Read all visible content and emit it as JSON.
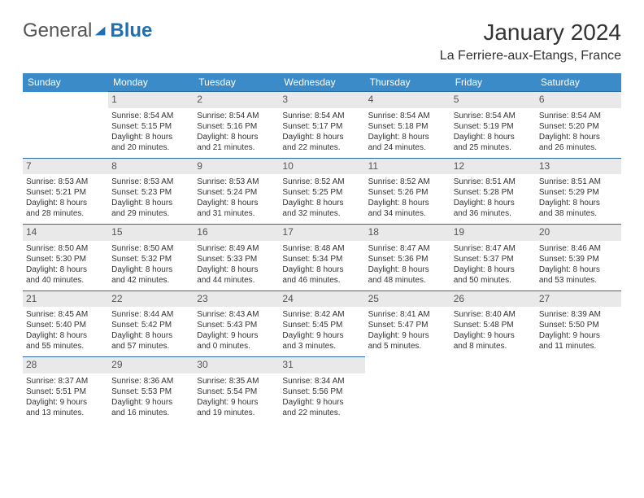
{
  "brand": {
    "part1": "General",
    "part2": "Blue"
  },
  "title": "January 2024",
  "location": "La Ferriere-aux-Etangs, France",
  "colors": {
    "header_bg": "#3b8bc8",
    "header_text": "#ffffff",
    "daynum_bg": "#e9e9e9",
    "rule": "#2a6aa8",
    "brand_blue": "#1f6fb2"
  },
  "dayHeaders": [
    "Sunday",
    "Monday",
    "Tuesday",
    "Wednesday",
    "Thursday",
    "Friday",
    "Saturday"
  ],
  "weeks": [
    [
      null,
      {
        "n": "1",
        "sr": "Sunrise: 8:54 AM",
        "ss": "Sunset: 5:15 PM",
        "d1": "Daylight: 8 hours",
        "d2": "and 20 minutes."
      },
      {
        "n": "2",
        "sr": "Sunrise: 8:54 AM",
        "ss": "Sunset: 5:16 PM",
        "d1": "Daylight: 8 hours",
        "d2": "and 21 minutes."
      },
      {
        "n": "3",
        "sr": "Sunrise: 8:54 AM",
        "ss": "Sunset: 5:17 PM",
        "d1": "Daylight: 8 hours",
        "d2": "and 22 minutes."
      },
      {
        "n": "4",
        "sr": "Sunrise: 8:54 AM",
        "ss": "Sunset: 5:18 PM",
        "d1": "Daylight: 8 hours",
        "d2": "and 24 minutes."
      },
      {
        "n": "5",
        "sr": "Sunrise: 8:54 AM",
        "ss": "Sunset: 5:19 PM",
        "d1": "Daylight: 8 hours",
        "d2": "and 25 minutes."
      },
      {
        "n": "6",
        "sr": "Sunrise: 8:54 AM",
        "ss": "Sunset: 5:20 PM",
        "d1": "Daylight: 8 hours",
        "d2": "and 26 minutes."
      }
    ],
    [
      {
        "n": "7",
        "sr": "Sunrise: 8:53 AM",
        "ss": "Sunset: 5:21 PM",
        "d1": "Daylight: 8 hours",
        "d2": "and 28 minutes."
      },
      {
        "n": "8",
        "sr": "Sunrise: 8:53 AM",
        "ss": "Sunset: 5:23 PM",
        "d1": "Daylight: 8 hours",
        "d2": "and 29 minutes."
      },
      {
        "n": "9",
        "sr": "Sunrise: 8:53 AM",
        "ss": "Sunset: 5:24 PM",
        "d1": "Daylight: 8 hours",
        "d2": "and 31 minutes."
      },
      {
        "n": "10",
        "sr": "Sunrise: 8:52 AM",
        "ss": "Sunset: 5:25 PM",
        "d1": "Daylight: 8 hours",
        "d2": "and 32 minutes."
      },
      {
        "n": "11",
        "sr": "Sunrise: 8:52 AM",
        "ss": "Sunset: 5:26 PM",
        "d1": "Daylight: 8 hours",
        "d2": "and 34 minutes."
      },
      {
        "n": "12",
        "sr": "Sunrise: 8:51 AM",
        "ss": "Sunset: 5:28 PM",
        "d1": "Daylight: 8 hours",
        "d2": "and 36 minutes."
      },
      {
        "n": "13",
        "sr": "Sunrise: 8:51 AM",
        "ss": "Sunset: 5:29 PM",
        "d1": "Daylight: 8 hours",
        "d2": "and 38 minutes."
      }
    ],
    [
      {
        "n": "14",
        "sr": "Sunrise: 8:50 AM",
        "ss": "Sunset: 5:30 PM",
        "d1": "Daylight: 8 hours",
        "d2": "and 40 minutes."
      },
      {
        "n": "15",
        "sr": "Sunrise: 8:50 AM",
        "ss": "Sunset: 5:32 PM",
        "d1": "Daylight: 8 hours",
        "d2": "and 42 minutes."
      },
      {
        "n": "16",
        "sr": "Sunrise: 8:49 AM",
        "ss": "Sunset: 5:33 PM",
        "d1": "Daylight: 8 hours",
        "d2": "and 44 minutes."
      },
      {
        "n": "17",
        "sr": "Sunrise: 8:48 AM",
        "ss": "Sunset: 5:34 PM",
        "d1": "Daylight: 8 hours",
        "d2": "and 46 minutes."
      },
      {
        "n": "18",
        "sr": "Sunrise: 8:47 AM",
        "ss": "Sunset: 5:36 PM",
        "d1": "Daylight: 8 hours",
        "d2": "and 48 minutes."
      },
      {
        "n": "19",
        "sr": "Sunrise: 8:47 AM",
        "ss": "Sunset: 5:37 PM",
        "d1": "Daylight: 8 hours",
        "d2": "and 50 minutes."
      },
      {
        "n": "20",
        "sr": "Sunrise: 8:46 AM",
        "ss": "Sunset: 5:39 PM",
        "d1": "Daylight: 8 hours",
        "d2": "and 53 minutes."
      }
    ],
    [
      {
        "n": "21",
        "sr": "Sunrise: 8:45 AM",
        "ss": "Sunset: 5:40 PM",
        "d1": "Daylight: 8 hours",
        "d2": "and 55 minutes."
      },
      {
        "n": "22",
        "sr": "Sunrise: 8:44 AM",
        "ss": "Sunset: 5:42 PM",
        "d1": "Daylight: 8 hours",
        "d2": "and 57 minutes."
      },
      {
        "n": "23",
        "sr": "Sunrise: 8:43 AM",
        "ss": "Sunset: 5:43 PM",
        "d1": "Daylight: 9 hours",
        "d2": "and 0 minutes."
      },
      {
        "n": "24",
        "sr": "Sunrise: 8:42 AM",
        "ss": "Sunset: 5:45 PM",
        "d1": "Daylight: 9 hours",
        "d2": "and 3 minutes."
      },
      {
        "n": "25",
        "sr": "Sunrise: 8:41 AM",
        "ss": "Sunset: 5:47 PM",
        "d1": "Daylight: 9 hours",
        "d2": "and 5 minutes."
      },
      {
        "n": "26",
        "sr": "Sunrise: 8:40 AM",
        "ss": "Sunset: 5:48 PM",
        "d1": "Daylight: 9 hours",
        "d2": "and 8 minutes."
      },
      {
        "n": "27",
        "sr": "Sunrise: 8:39 AM",
        "ss": "Sunset: 5:50 PM",
        "d1": "Daylight: 9 hours",
        "d2": "and 11 minutes."
      }
    ],
    [
      {
        "n": "28",
        "sr": "Sunrise: 8:37 AM",
        "ss": "Sunset: 5:51 PM",
        "d1": "Daylight: 9 hours",
        "d2": "and 13 minutes."
      },
      {
        "n": "29",
        "sr": "Sunrise: 8:36 AM",
        "ss": "Sunset: 5:53 PM",
        "d1": "Daylight: 9 hours",
        "d2": "and 16 minutes."
      },
      {
        "n": "30",
        "sr": "Sunrise: 8:35 AM",
        "ss": "Sunset: 5:54 PM",
        "d1": "Daylight: 9 hours",
        "d2": "and 19 minutes."
      },
      {
        "n": "31",
        "sr": "Sunrise: 8:34 AM",
        "ss": "Sunset: 5:56 PM",
        "d1": "Daylight: 9 hours",
        "d2": "and 22 minutes."
      },
      null,
      null,
      null
    ]
  ]
}
